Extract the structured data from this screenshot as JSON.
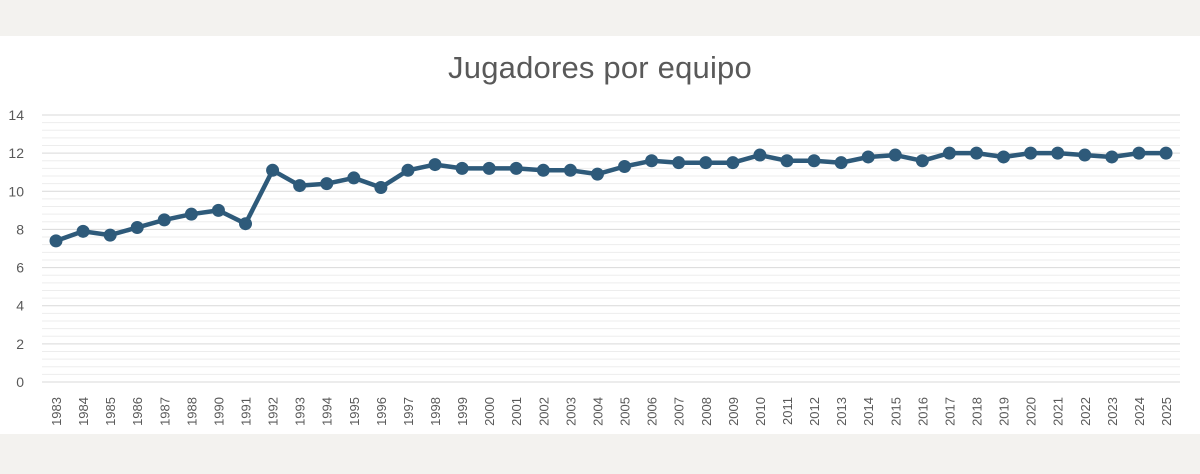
{
  "chart_data": {
    "type": "line",
    "title": "Jugadores por equipo",
    "xlabel": "",
    "ylabel": "",
    "ylim": [
      0,
      14
    ],
    "yticks": [
      0,
      2,
      4,
      6,
      8,
      10,
      12,
      14
    ],
    "minor_grid_step": 0.4,
    "grid": true,
    "legend": "none",
    "colors": {
      "line": "#2e5a7a",
      "grid_major": "#d9d9d9",
      "grid_minor": "#ededed",
      "text": "#595959",
      "page": "#f3f2ef",
      "panel": "#ffffff"
    },
    "categories": [
      "1983",
      "1984",
      "1985",
      "1986",
      "1987",
      "1988",
      "1990",
      "1991",
      "1992",
      "1993",
      "1994",
      "1995",
      "1996",
      "1997",
      "1998",
      "1999",
      "2000",
      "2001",
      "2002",
      "2003",
      "2004",
      "2005",
      "2006",
      "2007",
      "2008",
      "2009",
      "2010",
      "2011",
      "2012",
      "2013",
      "2014",
      "2015",
      "2016",
      "2017",
      "2018",
      "2019",
      "2020",
      "2021",
      "2022",
      "2023",
      "2024",
      "2025"
    ],
    "series": [
      {
        "values": [
          7.4,
          7.9,
          7.7,
          8.1,
          8.5,
          8.8,
          9.0,
          8.3,
          11.1,
          10.3,
          10.4,
          10.7,
          10.2,
          11.1,
          11.4,
          11.2,
          11.2,
          11.2,
          11.1,
          11.1,
          10.9,
          11.3,
          11.6,
          11.5,
          11.5,
          11.5,
          11.9,
          11.6,
          11.6,
          11.5,
          11.8,
          11.9,
          11.6,
          12.0,
          12.0,
          11.8,
          12.0,
          12.0,
          11.9,
          11.8,
          12.0,
          12.0
        ]
      }
    ]
  }
}
